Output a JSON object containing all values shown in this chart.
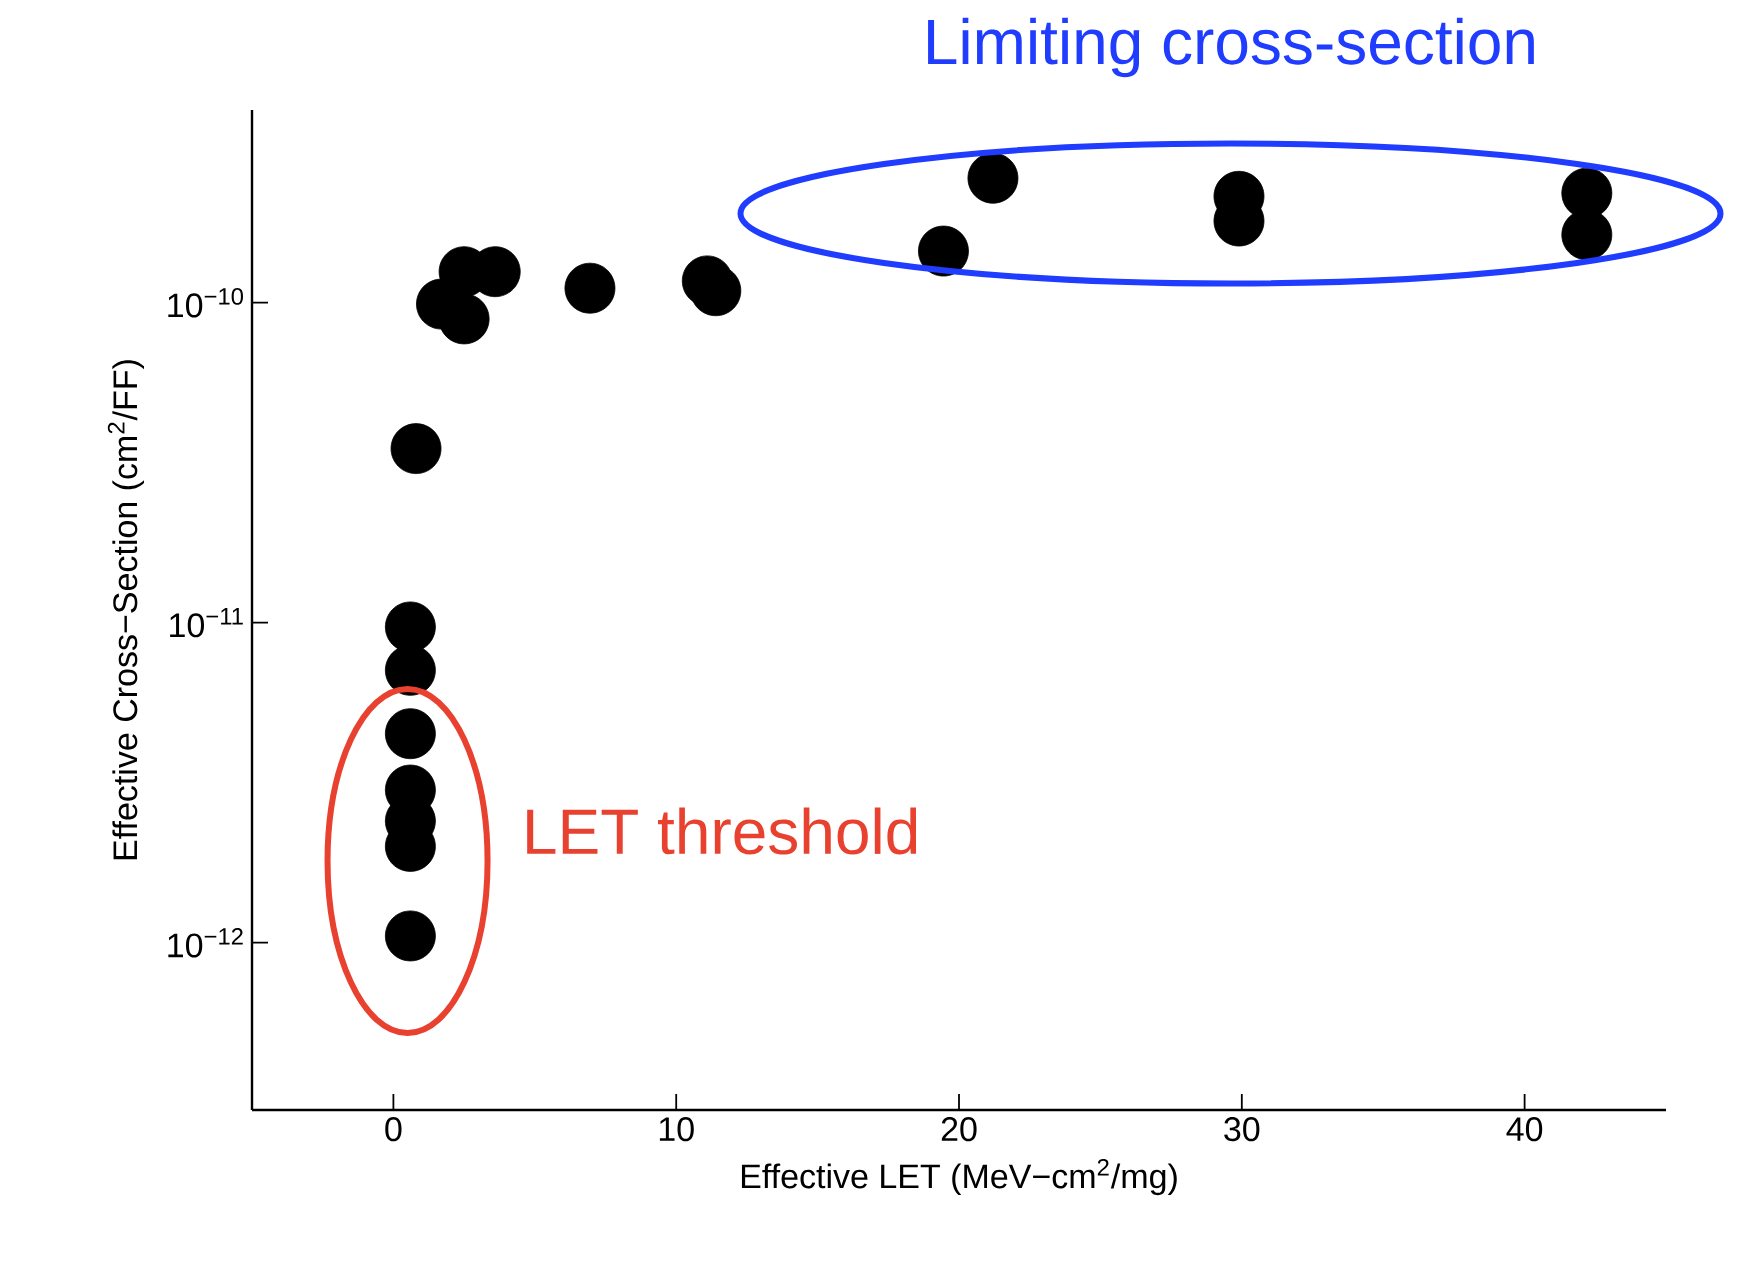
{
  "chart_data": {
    "type": "scatter",
    "xlabel": "Effective LET (MeV−cm$^{2}$/mg)",
    "ylabel": "Effective Cross−Section (cm$^{2}$/FF)",
    "x": [
      0.6,
      0.6,
      0.6,
      0.6,
      0.6,
      0.6,
      0.6,
      0.8,
      1.7,
      2.5,
      2.5,
      3.6,
      6.95,
      11.1,
      11.4,
      19.45,
      21.2,
      29.9,
      29.9,
      42.2,
      42.2
    ],
    "series": [
      {
        "color": "#000000",
        "values": [
          1.05e-12,
          2e-12,
          2.4e-12,
          3e-12,
          4.5e-12,
          7.1e-12,
          9.7e-12,
          3.5e-11,
          9.9e-11,
          8.9e-11,
          1.25e-10,
          1.25e-10,
          1.11e-10,
          1.17e-10,
          1.09e-10,
          1.45e-10,
          2.45e-10,
          2.15e-10,
          1.8e-10,
          2.2e-10,
          1.63e-10
        ]
      }
    ],
    "marker": "circle",
    "log": "y",
    "xlim": [
      -5,
      45
    ],
    "ylim": [
      3e-13,
      4e-10
    ],
    "xticks": [
      0,
      10,
      20,
      30,
      40
    ],
    "yticks": [
      {
        "value": 1e-12,
        "label": "10$^{−12}$"
      },
      {
        "value": 1e-11,
        "label": "10$^{−11}$"
      },
      {
        "value": 1e-10,
        "label": "10$^{−10}$"
      }
    ],
    "annotations": [
      {
        "text": "LET threshold",
        "x": 0.5,
        "y": 1.8e-12
      },
      {
        "text": "Limiting cross-section",
        "x": 29.6,
        "y": 1.9e-10
      }
    ]
  }
}
